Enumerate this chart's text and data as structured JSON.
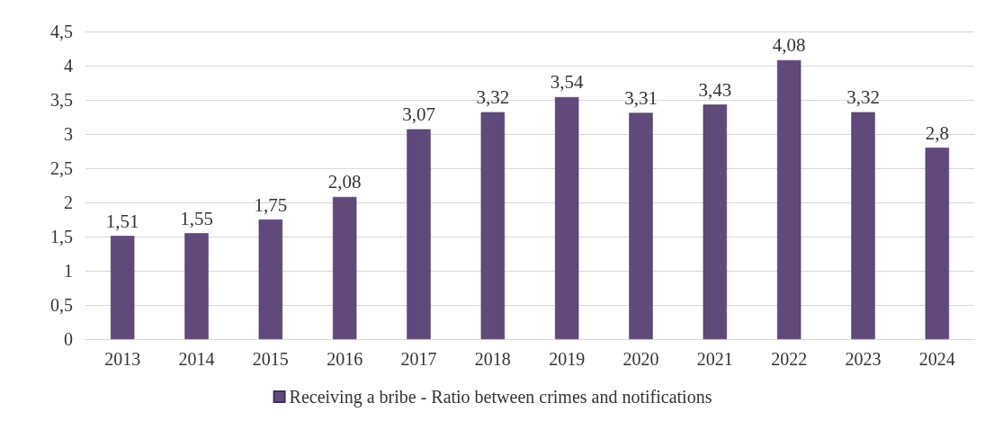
{
  "chart_data": {
    "type": "bar",
    "categories": [
      "2013",
      "2014",
      "2015",
      "2016",
      "2017",
      "2018",
      "2019",
      "2020",
      "2021",
      "2022",
      "2023",
      "2024"
    ],
    "series": [
      {
        "name": "Receiving a bribe - Ratio between crimes and notifications",
        "color": "#604a7b",
        "values": [
          1.51,
          1.55,
          1.75,
          2.08,
          3.07,
          3.32,
          3.54,
          3.31,
          3.43,
          4.08,
          3.32,
          2.8
        ],
        "value_labels": [
          "1,51",
          "1,55",
          "1,75",
          "2,08",
          "3,07",
          "3,32",
          "3,54",
          "3,31",
          "3,43",
          "4,08",
          "3,32",
          "2,8"
        ]
      }
    ],
    "ylim": [
      0,
      4.5
    ],
    "yticks": [
      0,
      {
        "value": 0.5,
        "label": "0,5"
      },
      1,
      {
        "value": 1.5,
        "label": "1,5"
      },
      2,
      {
        "value": 2.5,
        "label": "2,5"
      },
      3,
      {
        "value": 3.5,
        "label": "3,5"
      },
      4,
      {
        "value": 4.5,
        "label": "4,5"
      }
    ],
    "grid": "y",
    "legend": "bottom"
  }
}
